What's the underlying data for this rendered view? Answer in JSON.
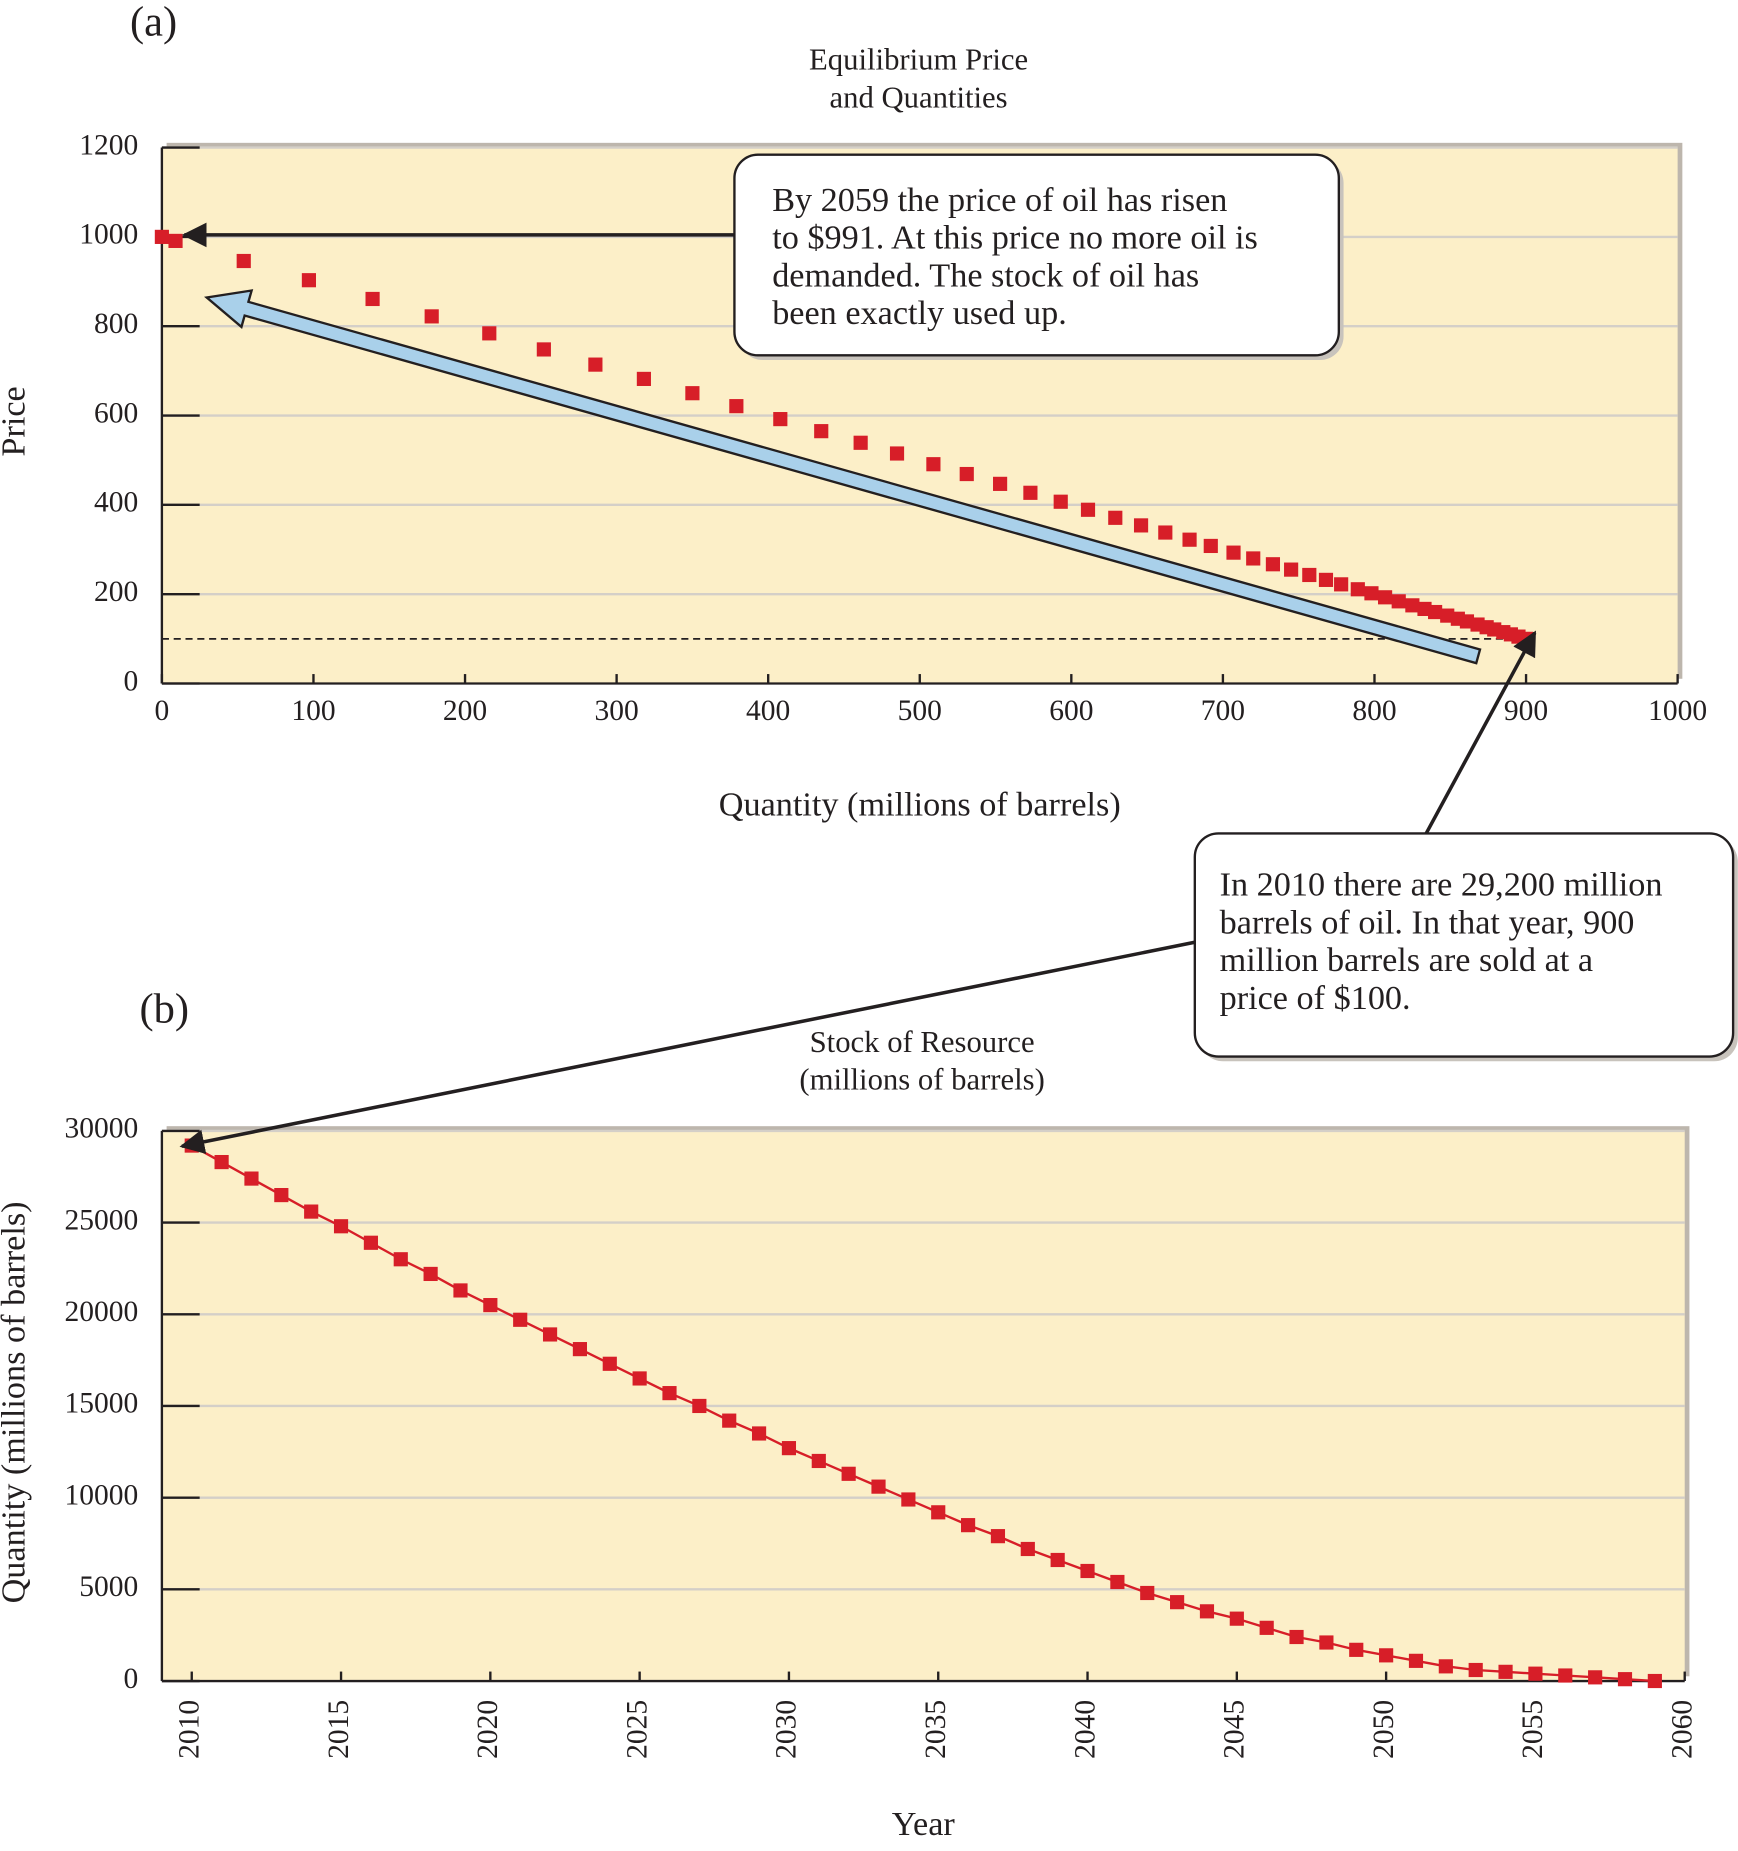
{
  "chart_data": [
    {
      "type": "scatter",
      "panel_label": "(a)",
      "title": [
        "Equilibrium Price",
        "and Quantities"
      ],
      "xlabel": "Quantity (millions of barrels)",
      "ylabel": "Price",
      "color": "#d71e28",
      "x": [
        900,
        895,
        890,
        885,
        879,
        874,
        868,
        861,
        855,
        848,
        840,
        833,
        825,
        816,
        807,
        798,
        789,
        778,
        768,
        757,
        745,
        733,
        720,
        707,
        692,
        678,
        662,
        646,
        629,
        611,
        593,
        573,
        553,
        531,
        509,
        485,
        461,
        435,
        408,
        379,
        350,
        318,
        286,
        252,
        216,
        178,
        139,
        97,
        54,
        9,
        0
      ],
      "values": [
        100,
        105,
        110,
        115,
        121,
        126,
        132,
        139,
        145,
        152,
        160,
        167,
        175,
        184,
        193,
        202,
        211,
        222,
        232,
        243,
        255,
        267,
        280,
        293,
        308,
        322,
        338,
        354,
        371,
        389,
        407,
        427,
        447,
        469,
        491,
        515,
        539,
        565,
        592,
        621,
        650,
        682,
        714,
        748,
        784,
        822,
        861,
        903,
        946,
        991,
        1000
      ],
      "reference_y": 100,
      "xlim": [
        0,
        1000
      ],
      "xticks": [
        0,
        100,
        200,
        300,
        400,
        500,
        600,
        700,
        800,
        900,
        1000
      ],
      "ylim": [
        0,
        1200
      ],
      "yticks": [
        0,
        200,
        400,
        600,
        800,
        1000,
        1200
      ],
      "grid": true,
      "annotations": [
        {
          "lines": [
            "By 2059 the price of oil has risen",
            "to $991. At this price no more oil is",
            "demanded. The stock of oil has",
            "been exactly used up."
          ]
        },
        {
          "lines": [
            "In 2010 there are 29,200 million",
            "barrels of oil. In that year, 900",
            "million barrels are sold at a",
            "price of $100."
          ]
        }
      ]
    },
    {
      "type": "line",
      "markers": true,
      "panel_label": "(b)",
      "title": [
        "Stock of Resource",
        "(millions of barrels)"
      ],
      "xlabel": "Year",
      "ylabel": "Quantity (millions of barrels)",
      "color": "#d71e28",
      "x": [
        2010,
        2011,
        2012,
        2013,
        2014,
        2015,
        2016,
        2017,
        2018,
        2019,
        2020,
        2021,
        2022,
        2023,
        2024,
        2025,
        2026,
        2027,
        2028,
        2029,
        2030,
        2031,
        2032,
        2033,
        2034,
        2035,
        2036,
        2037,
        2038,
        2039,
        2040,
        2041,
        2042,
        2043,
        2044,
        2045,
        2046,
        2047,
        2048,
        2049,
        2050,
        2051,
        2052,
        2053,
        2054,
        2055,
        2056,
        2057,
        2058,
        2059
      ],
      "values": [
        29200,
        28300,
        27400,
        26500,
        25600,
        24800,
        23900,
        23000,
        22200,
        21300,
        20500,
        19700,
        18900,
        18100,
        17300,
        16500,
        15700,
        15000,
        14200,
        13500,
        12700,
        12000,
        11300,
        10600,
        9900,
        9200,
        8500,
        7900,
        7200,
        6600,
        6000,
        5400,
        4800,
        4300,
        3800,
        3400,
        2900,
        2400,
        2100,
        1700,
        1400,
        1100,
        800,
        600,
        500,
        400,
        300,
        200,
        100,
        0
      ],
      "xlim": [
        2009,
        2060
      ],
      "xticks": [
        2010,
        2015,
        2020,
        2025,
        2030,
        2035,
        2040,
        2045,
        2050,
        2055,
        2060
      ],
      "ylim": [
        0,
        30000
      ],
      "yticks": [
        0,
        5000,
        10000,
        15000,
        20000,
        25000,
        30000
      ],
      "grid": true
    }
  ]
}
